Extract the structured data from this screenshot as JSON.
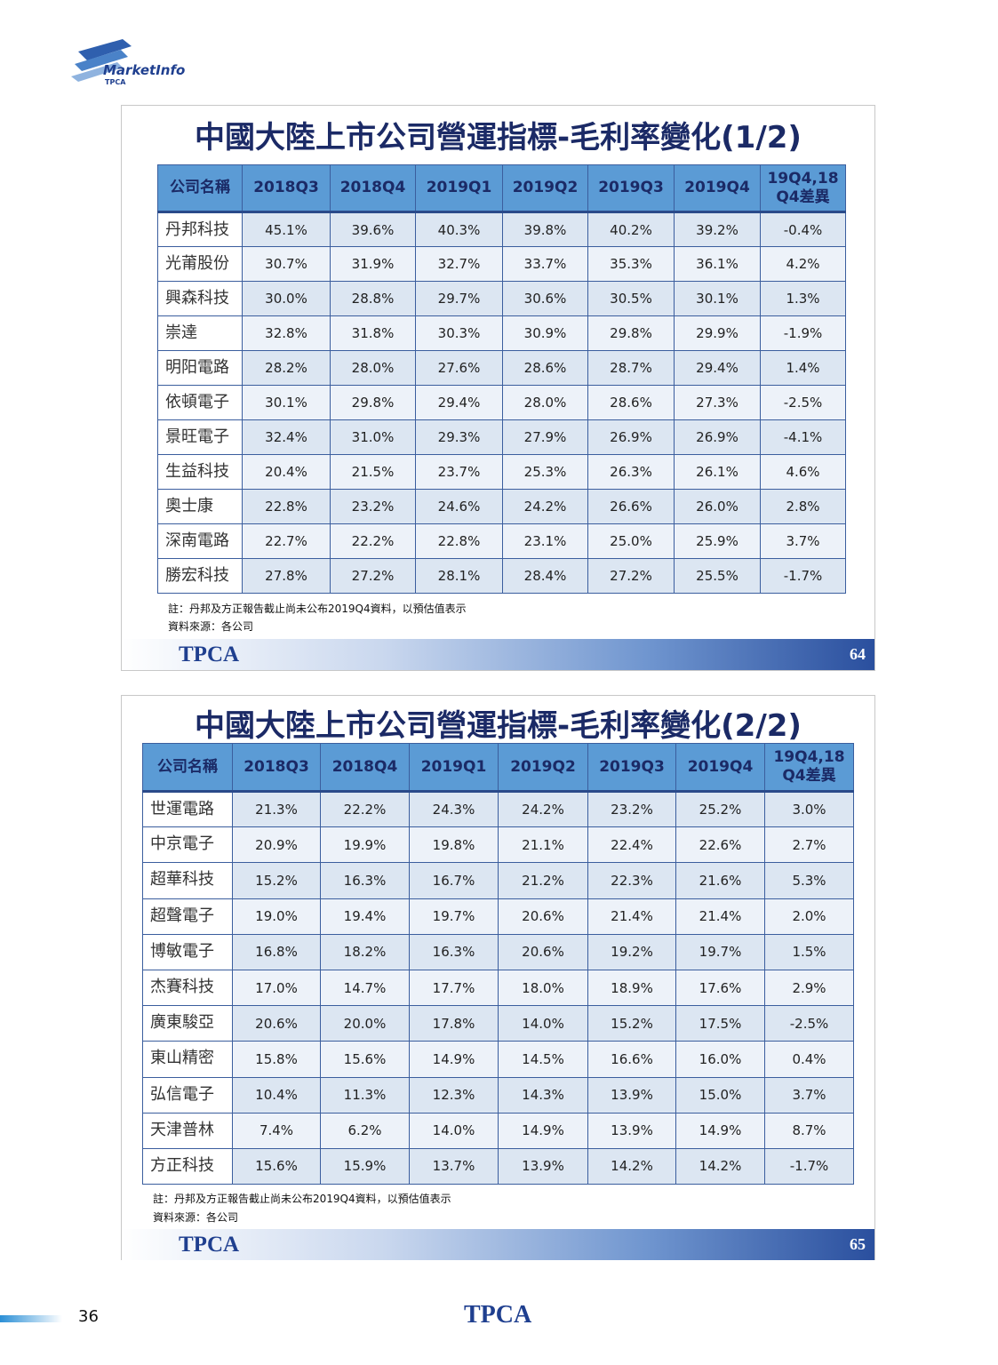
{
  "header": {
    "logo": "MarketInfo",
    "logo_sub": "TPCA"
  },
  "slides": [
    {
      "title": "中國大陸上市公司營運指標-毛利率變化(1/2)",
      "table": {
        "header": [
          "公司名稱",
          "2018Q3",
          "2018Q4",
          "2019Q1",
          "2019Q2",
          "2019Q3",
          "2019Q4",
          "19Q4,18\nQ4差異"
        ],
        "rows": [
          [
            "丹邦科技",
            "45.1%",
            "39.6%",
            "40.3%",
            "39.8%",
            "40.2%",
            "39.2%",
            "-0.4%"
          ],
          [
            "光莆股份",
            "30.7%",
            "31.9%",
            "32.7%",
            "33.7%",
            "35.3%",
            "36.1%",
            "4.2%"
          ],
          [
            "興森科技",
            "30.0%",
            "28.8%",
            "29.7%",
            "30.6%",
            "30.5%",
            "30.1%",
            "1.3%"
          ],
          [
            "崇達",
            "32.8%",
            "31.8%",
            "30.3%",
            "30.9%",
            "29.8%",
            "29.9%",
            "-1.9%"
          ],
          [
            "明阳電路",
            "28.2%",
            "28.0%",
            "27.6%",
            "28.6%",
            "28.7%",
            "29.4%",
            "1.4%"
          ],
          [
            "依頓電子",
            "30.1%",
            "29.8%",
            "29.4%",
            "28.0%",
            "28.6%",
            "27.3%",
            "-2.5%"
          ],
          [
            "景旺電子",
            "32.4%",
            "31.0%",
            "29.3%",
            "27.9%",
            "26.9%",
            "26.9%",
            "-4.1%"
          ],
          [
            "生益科技",
            "20.4%",
            "21.5%",
            "23.7%",
            "25.3%",
            "26.3%",
            "26.1%",
            "4.6%"
          ],
          [
            "奧士康",
            "22.8%",
            "23.2%",
            "24.6%",
            "24.2%",
            "26.6%",
            "26.0%",
            "2.8%"
          ],
          [
            "深南電路",
            "22.7%",
            "22.2%",
            "22.8%",
            "23.1%",
            "25.0%",
            "25.9%",
            "3.7%"
          ],
          [
            "勝宏科技",
            "27.8%",
            "27.2%",
            "28.1%",
            "28.4%",
            "27.2%",
            "25.5%",
            "-1.7%"
          ]
        ]
      },
      "note": "註：丹邦及方正報告截止尚未公布2019Q4資料，以預估值表示",
      "source": "資料來源：各公司",
      "brand": "TPCA",
      "page": "64"
    },
    {
      "title": "中國大陸上市公司營運指標-毛利率變化(2/2)",
      "table": {
        "header": [
          "公司名稱",
          "2018Q3",
          "2018Q4",
          "2019Q1",
          "2019Q2",
          "2019Q3",
          "2019Q4",
          "19Q4,18\nQ4差異"
        ],
        "rows": [
          [
            "世運電路",
            "21.3%",
            "22.2%",
            "24.3%",
            "24.2%",
            "23.2%",
            "25.2%",
            "3.0%"
          ],
          [
            "中京電子",
            "20.9%",
            "19.9%",
            "19.8%",
            "21.1%",
            "22.4%",
            "22.6%",
            "2.7%"
          ],
          [
            "超華科技",
            "15.2%",
            "16.3%",
            "16.7%",
            "21.2%",
            "22.3%",
            "21.6%",
            "5.3%"
          ],
          [
            "超聲電子",
            "19.0%",
            "19.4%",
            "19.7%",
            "20.6%",
            "21.4%",
            "21.4%",
            "2.0%"
          ],
          [
            "博敏電子",
            "16.8%",
            "18.2%",
            "16.3%",
            "20.6%",
            "19.2%",
            "19.7%",
            "1.5%"
          ],
          [
            "杰賽科技",
            "17.0%",
            "14.7%",
            "17.7%",
            "18.0%",
            "18.9%",
            "17.6%",
            "2.9%"
          ],
          [
            "廣東駿亞",
            "20.6%",
            "20.0%",
            "17.8%",
            "14.0%",
            "15.2%",
            "17.5%",
            "-2.5%"
          ],
          [
            "東山精密",
            "15.8%",
            "15.6%",
            "14.9%",
            "14.5%",
            "16.6%",
            "16.0%",
            "0.4%"
          ],
          [
            "弘信電子",
            "10.4%",
            "11.3%",
            "12.3%",
            "14.3%",
            "13.9%",
            "15.0%",
            "3.7%"
          ],
          [
            "天津普林",
            "7.4%",
            "6.2%",
            "14.0%",
            "14.9%",
            "13.9%",
            "14.9%",
            "8.7%"
          ],
          [
            "方正科技",
            "15.6%",
            "15.9%",
            "13.7%",
            "13.9%",
            "14.2%",
            "14.2%",
            "-1.7%"
          ]
        ]
      },
      "note": "註：丹邦及方正報告截止尚未公布2019Q4資料，以預估值表示",
      "source": "資料來源：各公司",
      "brand": "TPCA",
      "page": "65"
    }
  ],
  "footer": {
    "page": "36",
    "brand": "TPCA"
  }
}
